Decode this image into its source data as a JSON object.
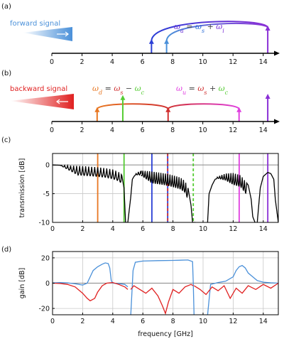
{
  "panels": {
    "a": {
      "label": "(a)",
      "signal_text": "forward signal",
      "signal_color": "#4a90d9",
      "equation": [
        [
          "ω",
          "#6a2fd6"
        ],
        [
          "a",
          "#6a2fd6"
        ],
        [
          " = ",
          "#444444"
        ],
        [
          "ω",
          "#2b6cd6"
        ],
        [
          "s",
          "#2b6cd6"
        ],
        [
          " + ",
          "#444444"
        ],
        [
          "ω",
          "#7a2fd6"
        ],
        [
          "i",
          "#7a2fd6"
        ]
      ]
    },
    "b": {
      "label": "(b)",
      "signal_text": "backward signal",
      "signal_color": "#e02020",
      "eq_d": [
        [
          "ω",
          "#e87722"
        ],
        [
          "d",
          "#e87722"
        ],
        [
          " = ",
          "#444444"
        ],
        [
          "ω",
          "#d03030"
        ],
        [
          "s",
          "#d03030"
        ],
        [
          " − ",
          "#444444"
        ],
        [
          "ω",
          "#55cc33"
        ],
        [
          "c",
          "#55cc33"
        ]
      ],
      "eq_u": [
        [
          "ω",
          "#e040e0"
        ],
        [
          "u",
          "#e040e0"
        ],
        [
          " = ",
          "#444444"
        ],
        [
          "ω",
          "#d03030"
        ],
        [
          "s",
          "#d03030"
        ],
        [
          " + ",
          "#444444"
        ],
        [
          "ω",
          "#55cc33"
        ],
        [
          "c",
          "#55cc33"
        ]
      ]
    },
    "c": {
      "label": "(c)"
    },
    "d": {
      "label": "(d)"
    }
  },
  "chart_data": [
    {
      "type": "frequency-axis-diagram",
      "panel": "a",
      "xlim": [
        0,
        15
      ],
      "xticks": [
        0,
        2,
        4,
        6,
        8,
        10,
        12,
        14
      ],
      "tones": [
        {
          "name": "ωs",
          "freq": 6.6,
          "color": "#2b3fd6",
          "height": 0.45
        },
        {
          "name": "ωi",
          "freq": 7.6,
          "color": "#4a90d9",
          "height": 0.45
        },
        {
          "name": "ωa",
          "freq": 14.3,
          "color": "#8a2fd6",
          "height": 1.0
        }
      ],
      "arcs": [
        {
          "from": 6.6,
          "to": 14.3,
          "colors": [
            "#2b3fd6",
            "#8a2fd6"
          ]
        },
        {
          "from": 7.6,
          "to": 14.3,
          "colors": [
            "#4a90d9",
            "#8a2fd6"
          ]
        }
      ]
    },
    {
      "type": "frequency-axis-diagram",
      "panel": "b",
      "xlim": [
        0,
        15
      ],
      "xticks": [
        0,
        2,
        4,
        6,
        8,
        10,
        12,
        14
      ],
      "tones": [
        {
          "name": "ωd",
          "freq": 3.0,
          "color": "#e87722",
          "height": 0.45
        },
        {
          "name": "ωc",
          "freq": 4.7,
          "color": "#55cc33",
          "height": 0.95
        },
        {
          "name": "ωs",
          "freq": 7.7,
          "color": "#d03030",
          "height": 0.45
        },
        {
          "name": "ωu",
          "freq": 12.4,
          "color": "#e040e0",
          "height": 0.45
        },
        {
          "name": "ωa",
          "freq": 14.3,
          "color": "#8a2fd6",
          "height": 1.0
        }
      ],
      "arcs": [
        {
          "from": 7.7,
          "to": 3.0,
          "colors": [
            "#d03030",
            "#e87722"
          ]
        },
        {
          "from": 7.7,
          "to": 12.4,
          "colors": [
            "#d03030",
            "#e040e0"
          ]
        }
      ]
    },
    {
      "type": "line",
      "panel": "c",
      "ylabel": "transmission [dB]",
      "xlim": [
        0,
        15
      ],
      "ylim": [
        -10,
        2
      ],
      "xticks": [
        0,
        2,
        4,
        6,
        8,
        10,
        12,
        14
      ],
      "yticks": [
        0,
        -5,
        -10
      ],
      "grid": true,
      "series": [
        {
          "color": "#000000",
          "segments": [
            {
              "x": [
                0,
                0.5,
                1.0,
                1.5,
                2.0,
                2.5,
                3.0,
                3.5,
                4.0,
                4.3,
                4.5,
                4.6,
                4.75,
                4.85,
                5.0,
                5.2,
                5.3,
                5.5,
                5.7,
                5.9
              ],
              "y": [
                0,
                -0.05,
                -0.1,
                -0.15,
                -0.2,
                -0.3,
                -0.4,
                -0.55,
                -0.8,
                -1.1,
                -1.4,
                -1.8,
                -4.0,
                -10,
                -10,
                -5.5,
                -2.5,
                -1.6,
                -1.2,
                -1.0
              ]
            },
            {
              "x": [
                5.9,
                6.5,
                7.0,
                7.5,
                8.0,
                8.5,
                8.8,
                9.0,
                9.2,
                9.3,
                9.4,
                9.5
              ],
              "y": [
                -1.0,
                -1.1,
                -1.3,
                -1.5,
                -1.8,
                -2.2,
                -2.8,
                -4.0,
                -7.0,
                -10,
                -10,
                -10
              ]
            },
            {
              "x": [
                10.3,
                10.4,
                10.6,
                10.8,
                11.0,
                11.5,
                12.0,
                12.5,
                13.0,
                13.2,
                13.3,
                13.45
              ],
              "y": [
                -10,
                -5.0,
                -3.5,
                -2.5,
                -2.0,
                -1.5,
                -1.4,
                -1.8,
                -3.5,
                -6.0,
                -9.0,
                -10
              ]
            },
            {
              "x": [
                13.6,
                13.8,
                14.0,
                14.3,
                14.5,
                14.7,
                14.8,
                15.0
              ],
              "y": [
                -10,
                -4.0,
                -2.0,
                -1.3,
                -1.5,
                -2.5,
                -6.0,
                -10
              ]
            }
          ],
          "ripple": [
            [
              0.5,
              4.55,
              0.2,
              1.6
            ],
            [
              5.4,
              9.0,
              0.15,
              2.0
            ],
            [
              10.8,
              12.9,
              0.15,
              2.0
            ]
          ]
        }
      ],
      "markers": [
        {
          "x": 3.0,
          "color": "#e87722",
          "style": "solid"
        },
        {
          "x": 4.75,
          "color": "#55cc33",
          "style": "solid"
        },
        {
          "x": 6.6,
          "color": "#2b3fd6",
          "style": "solid"
        },
        {
          "x": 7.65,
          "color": "#2b3fd6",
          "style": "solid"
        },
        {
          "x": 7.65,
          "color": "#d03030",
          "style": "dashed"
        },
        {
          "x": 9.35,
          "color": "#55cc33",
          "style": "dashed"
        },
        {
          "x": 12.4,
          "color": "#e040e0",
          "style": "solid"
        },
        {
          "x": 14.3,
          "color": "#8a2fd6",
          "style": "solid"
        }
      ]
    },
    {
      "type": "line",
      "panel": "d",
      "xlabel": "frequency [GHz]",
      "ylabel": "gain [dB]",
      "xlim": [
        0,
        15
      ],
      "ylim": [
        -25,
        25
      ],
      "xticks": [
        0,
        2,
        4,
        6,
        8,
        10,
        12,
        14
      ],
      "yticks": [
        20,
        0,
        -20
      ],
      "grid": true,
      "series": [
        {
          "color": "#4a90d9",
          "segments": [
            {
              "x": [
                0,
                0.5,
                1.0,
                1.5,
                2.0,
                2.3,
                2.5,
                2.7,
                3.0,
                3.3,
                3.5,
                3.7,
                3.8,
                3.9,
                4.0,
                4.5,
                4.8,
                5.0
              ],
              "y": [
                0.2,
                0.5,
                0.2,
                -0.5,
                -1.5,
                0,
                5,
                10,
                13,
                15,
                16,
                15.5,
                12,
                2,
                0,
                -0.5,
                -1,
                -3
              ]
            },
            {
              "x": [
                5.2,
                5.35,
                5.5,
                6.0,
                7.0,
                8.0,
                9.0,
                9.3,
                9.35,
                9.4
              ],
              "y": [
                -25,
                10,
                16.5,
                17.5,
                17.8,
                18.0,
                18.3,
                17,
                0,
                -25
              ]
            },
            {
              "x": [
                10.3,
                10.5,
                11.0,
                11.5,
                12.0,
                12.2,
                12.4,
                12.6,
                12.8,
                13.0,
                13.3,
                13.6,
                14.0,
                14.5,
                15.0
              ],
              "y": [
                -25,
                -1,
                0.5,
                1.5,
                5,
                10,
                13,
                14,
                12,
                8,
                5,
                2,
                0.8,
                0.3,
                0
              ]
            }
          ]
        },
        {
          "color": "#e02020",
          "segments": [
            {
              "x": [
                0,
                0.5,
                1.0,
                1.5,
                2.0,
                2.3,
                2.5,
                2.8,
                3.0,
                3.3,
                3.6,
                4.0,
                4.4,
                4.8,
                5.0
              ],
              "y": [
                0,
                -0.3,
                -1,
                -3,
                -8,
                -12,
                -14,
                -12,
                -7,
                -2,
                0,
                0.5,
                -1,
                -3,
                -5
              ]
            },
            {
              "x": [
                5.2,
                5.4,
                5.8,
                6.2,
                6.6,
                7.0,
                7.3,
                7.5,
                7.7,
                8.0,
                8.4,
                8.8,
                9.2,
                9.35
              ],
              "y": [
                -5,
                -2,
                -5,
                -8,
                -4,
                -10,
                -18,
                -24,
                -15,
                -5,
                -8,
                -3,
                -1,
                -2
              ]
            },
            {
              "x": [
                9.4,
                9.8,
                10.2,
                10.6,
                11.0,
                11.4,
                11.8,
                12.2,
                12.6,
                13.0,
                13.5,
                14.0,
                14.5,
                15.0
              ],
              "y": [
                -2,
                -5,
                -9,
                -3,
                -6,
                -2,
                -12,
                -4,
                -8,
                -2,
                -5,
                -1,
                -4,
                0
              ]
            }
          ]
        }
      ]
    }
  ]
}
